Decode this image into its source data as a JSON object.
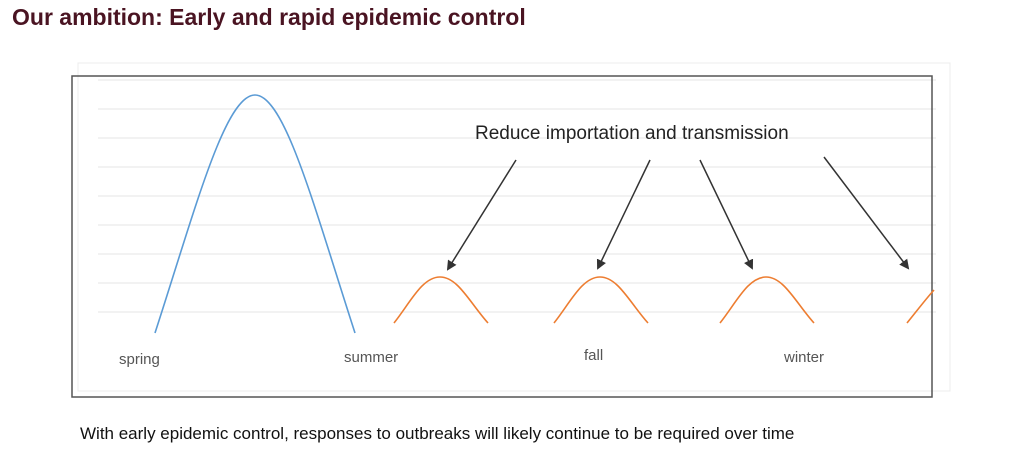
{
  "slide": {
    "title": "Our ambition: Early and rapid epidemic control",
    "caption": "With early epidemic control, responses to outbreaks will likely continue to be required over time"
  },
  "diagram": {
    "annotation": "Reduce importation and transmission",
    "seasons": [
      "spring",
      "summer",
      "fall",
      "winter"
    ],
    "colors": {
      "title": "#4a1422",
      "large_wave": "#5b9bd5",
      "small_waves": "#ed7d31",
      "arrows": "#333333",
      "frame": "#555555",
      "grid": "#e6e6e6"
    }
  }
}
